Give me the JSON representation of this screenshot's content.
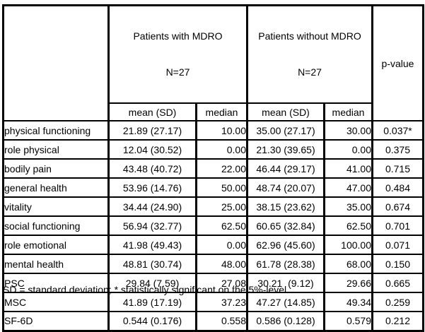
{
  "table": {
    "header": {
      "group_with_mdro": {
        "line1": "Patients with MDRO",
        "line2": "N=27"
      },
      "group_without_mdro": {
        "line1": "Patients without MDRO",
        "line2": "N=27"
      },
      "p_value_label": "p-value",
      "sub_headers": [
        "mean (SD)",
        "median",
        "mean (SD)",
        "median"
      ]
    },
    "rows": [
      {
        "label": "physical functioning",
        "with_mean_sd": "21.89 (27.17)",
        "with_median": "10.00",
        "without_mean_sd": "35.00 (27.17)",
        "without_median": "30.00",
        "p": "0.037*"
      },
      {
        "label": "role physical",
        "with_mean_sd": "12.04 (30.52)",
        "with_median": "0.00",
        "without_mean_sd": "21.30 (39.65)",
        "without_median": "0.00",
        "p": "0.375"
      },
      {
        "label": "bodily pain",
        "with_mean_sd": "43.48 (40.72)",
        "with_median": "22.00",
        "without_mean_sd": "46.44 (29.17)",
        "without_median": "41.00",
        "p": "0.715"
      },
      {
        "label": "general health",
        "with_mean_sd": "53.96 (14.76)",
        "with_median": "50.00",
        "without_mean_sd": "48.74 (20.07)",
        "without_median": "47.00",
        "p": "0.484"
      },
      {
        "label": "vitality",
        "with_mean_sd": "34.44 (24.90)",
        "with_median": "25.00",
        "without_mean_sd": "38.15 (23.62)",
        "without_median": "35.00",
        "p": "0.674"
      },
      {
        "label": "social functioning",
        "with_mean_sd": "56.94 (32.77)",
        "with_median": "62.50",
        "without_mean_sd": "60.65 (32.84)",
        "without_median": "62.50",
        "p": "0.701"
      },
      {
        "label": "role emotional",
        "with_mean_sd": "41.98 (49.43)",
        "with_median": "0.00",
        "without_mean_sd": "62.96 (45.60)",
        "without_median": "100.00",
        "p": "0.071"
      },
      {
        "label": "mental health",
        "with_mean_sd": "48.81 (30.74)",
        "with_median": "48.00",
        "without_mean_sd": "61.78 (28.38)",
        "without_median": "68.00",
        "p": "0.150"
      },
      {
        "label": "PSC",
        "with_mean_sd": "29.84 (7.59)",
        "with_median": "27.08",
        "without_mean_sd": "30.21  (9.12)",
        "without_median": "29.66",
        "p": "0.665"
      },
      {
        "label": "MSC",
        "with_mean_sd": "41.89 (17.19)",
        "with_median": "37.23",
        "without_mean_sd": "47.27 (14.85)",
        "without_median": "49.34",
        "p": "0.259"
      },
      {
        "label": "SF-6D",
        "with_mean_sd": "0.544 (0.176)",
        "with_median": "0.558",
        "without_mean_sd": "0.586 (0.128)",
        "without_median": "0.579",
        "p": "0.212"
      }
    ],
    "footnote": "SD = standard deviation; * statistically significant on the 5%-level"
  }
}
